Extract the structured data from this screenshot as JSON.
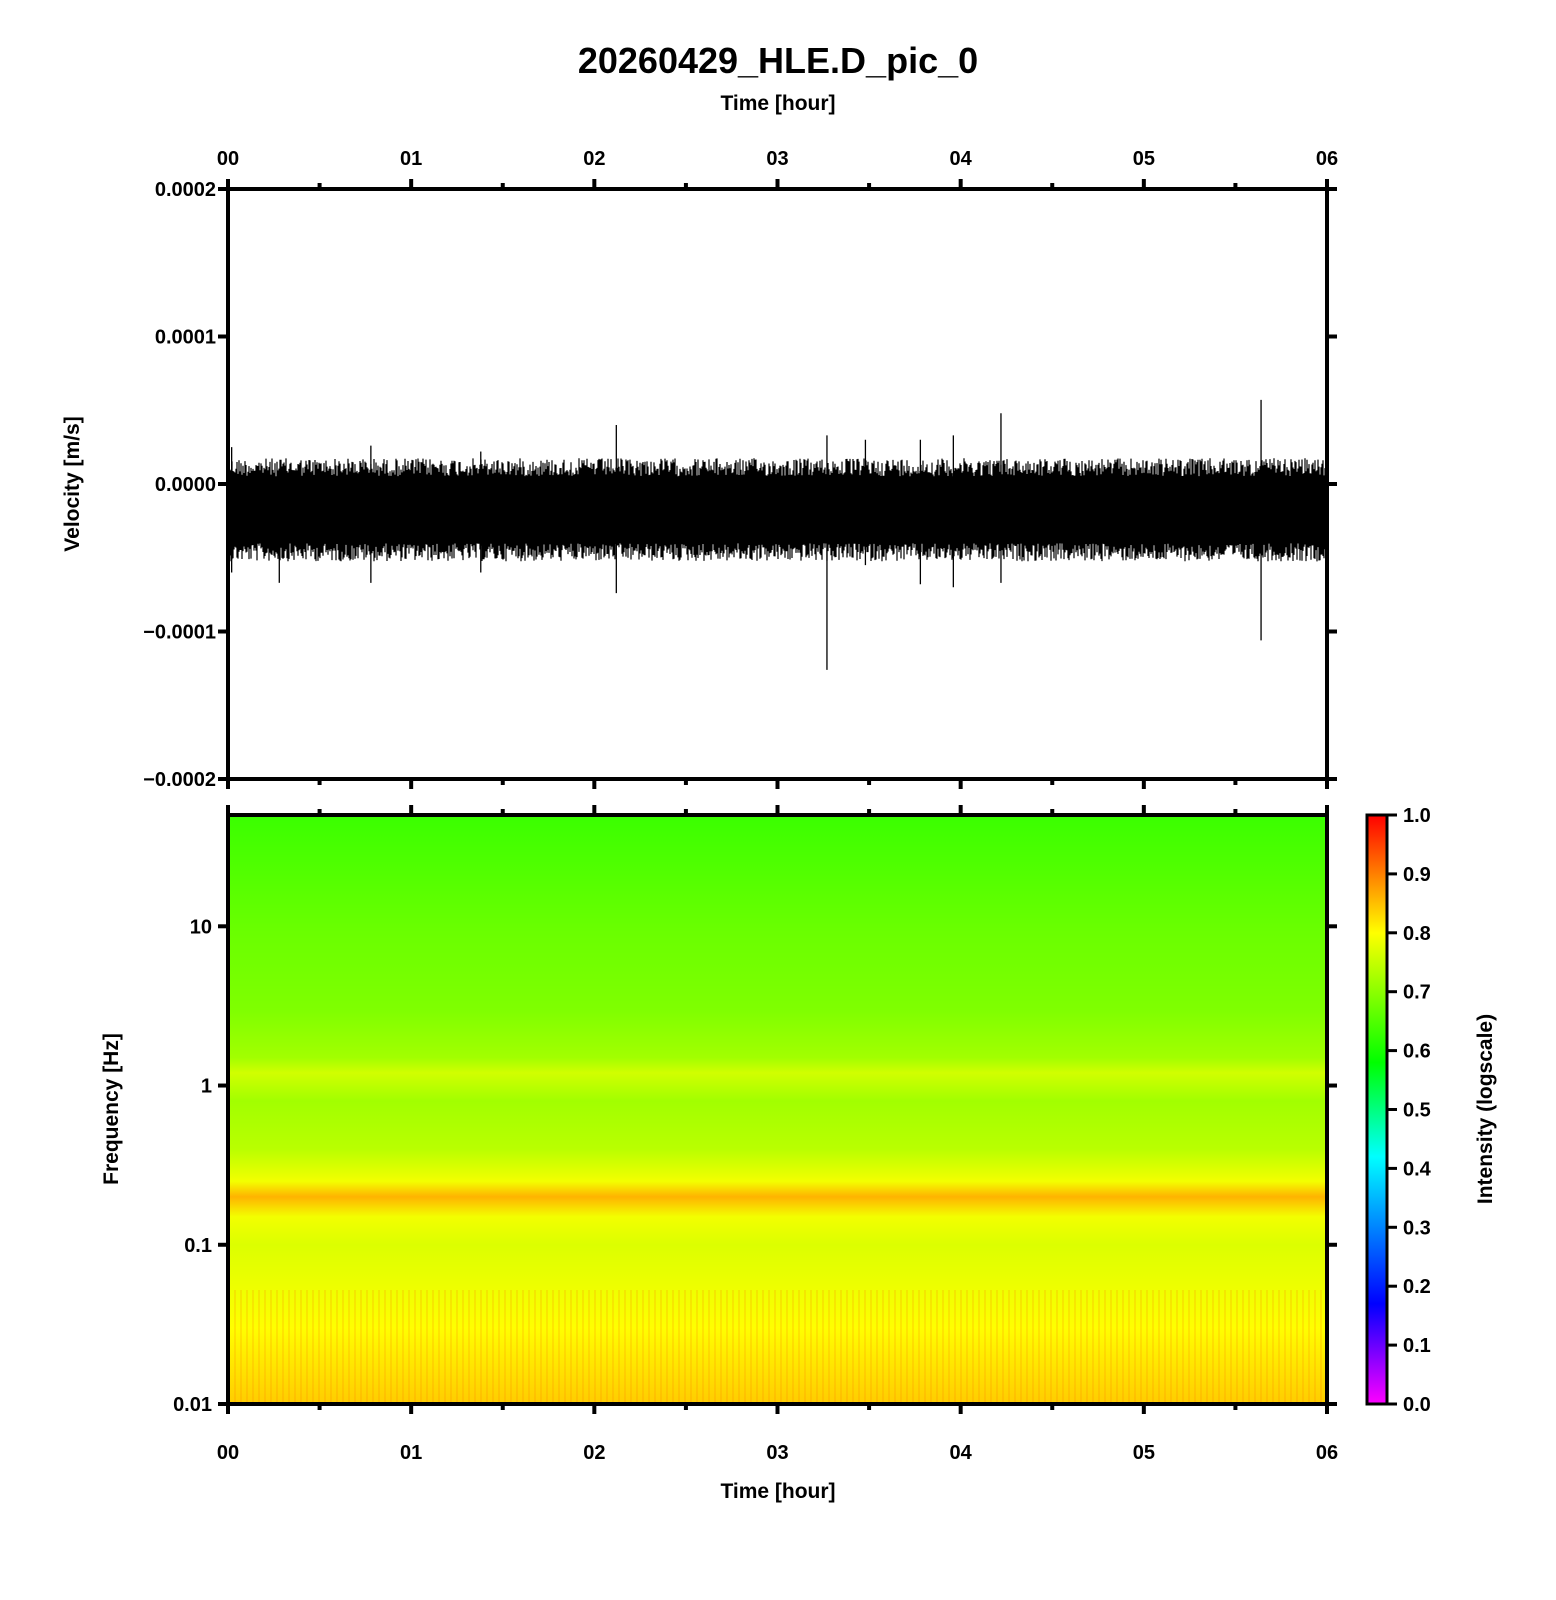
{
  "figure": {
    "title": "20260429_HLE.D_pic_0"
  },
  "chart_data": [
    {
      "type": "line",
      "name": "waveform",
      "xlabel": "Time [hour]",
      "ylabel": "Velocity [m/s]",
      "xlim": [
        0,
        6
      ],
      "ylim": [
        -0.0002,
        0.0002
      ],
      "x_ticks": [
        "00",
        "01",
        "02",
        "03",
        "04",
        "05",
        "06"
      ],
      "y_ticks": [
        "-0.0002",
        "-0.0001",
        "0.0000",
        "0.0001",
        "0.0002"
      ],
      "series_color": "#000000",
      "noise_band": {
        "upper": 1e-05,
        "lower": -4.5e-05
      },
      "spikes": [
        {
          "x": 0.02,
          "y_max": 2.5e-05,
          "y_min": -6e-05
        },
        {
          "x": 0.28,
          "y_max": 1e-05,
          "y_min": -6.7e-05
        },
        {
          "x": 0.78,
          "y_max": 2.6e-05,
          "y_min": -6.7e-05
        },
        {
          "x": 1.38,
          "y_max": 2.2e-05,
          "y_min": -6e-05
        },
        {
          "x": 2.12,
          "y_max": 4e-05,
          "y_min": -7.4e-05
        },
        {
          "x": 3.27,
          "y_max": 3.3e-05,
          "y_min": -0.000126
        },
        {
          "x": 3.48,
          "y_max": 3e-05,
          "y_min": -5.5e-05
        },
        {
          "x": 3.78,
          "y_max": 3e-05,
          "y_min": -6.8e-05
        },
        {
          "x": 3.96,
          "y_max": 3.3e-05,
          "y_min": -7e-05
        },
        {
          "x": 4.22,
          "y_max": 4.8e-05,
          "y_min": -6.7e-05
        },
        {
          "x": 5.64,
          "y_max": 5.7e-05,
          "y_min": -0.000106
        }
      ]
    },
    {
      "type": "heatmap",
      "name": "spectrogram",
      "xlabel": "Time [hour]",
      "ylabel": "Frequency [Hz]",
      "xlim": [
        0,
        6
      ],
      "ylim": [
        0.01,
        50
      ],
      "y_scale": "log",
      "x_ticks": [
        "00",
        "01",
        "02",
        "03",
        "04",
        "05",
        "06"
      ],
      "y_ticks": [
        {
          "value": 0.01,
          "label": "0.01"
        },
        {
          "value": 0.1,
          "label": "0.1"
        },
        {
          "value": 1,
          "label": "1"
        },
        {
          "value": 10,
          "label": "10"
        }
      ],
      "intensity_profile": [
        {
          "freq": 0.01,
          "intensity": 0.84
        },
        {
          "freq": 0.03,
          "intensity": 0.8
        },
        {
          "freq": 0.1,
          "intensity": 0.77
        },
        {
          "freq": 0.15,
          "intensity": 0.79
        },
        {
          "freq": 0.2,
          "intensity": 0.86
        },
        {
          "freq": 0.25,
          "intensity": 0.79
        },
        {
          "freq": 0.4,
          "intensity": 0.74
        },
        {
          "freq": 0.8,
          "intensity": 0.72
        },
        {
          "freq": 1.2,
          "intensity": 0.76
        },
        {
          "freq": 1.5,
          "intensity": 0.72
        },
        {
          "freq": 3,
          "intensity": 0.69
        },
        {
          "freq": 10,
          "intensity": 0.67
        },
        {
          "freq": 50,
          "intensity": 0.63
        }
      ],
      "colorbar": {
        "label": "Intensity (logscale)",
        "range": [
          0,
          1
        ],
        "ticks": [
          "0.0",
          "0.1",
          "0.2",
          "0.3",
          "0.4",
          "0.5",
          "0.6",
          "0.7",
          "0.8",
          "0.9",
          "1.0"
        ],
        "colors": [
          {
            "pos": 0.0,
            "color": "#ff00ff"
          },
          {
            "pos": 0.17,
            "color": "#0000ff"
          },
          {
            "pos": 0.42,
            "color": "#00ffff"
          },
          {
            "pos": 0.58,
            "color": "#00ff00"
          },
          {
            "pos": 0.8,
            "color": "#ffff00"
          },
          {
            "pos": 1.0,
            "color": "#ff0000"
          }
        ]
      }
    }
  ]
}
